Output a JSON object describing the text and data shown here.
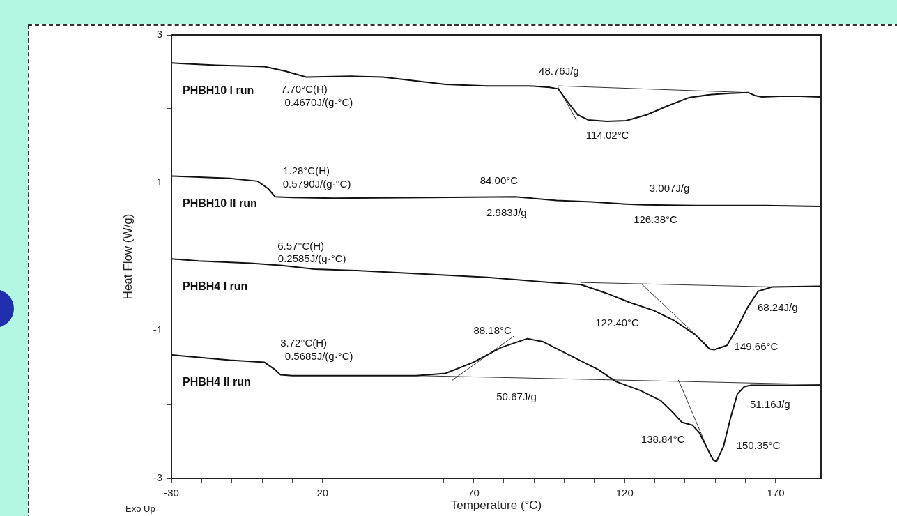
{
  "chart_data": {
    "type": "line",
    "xlabel": "Temperature (°C)",
    "ylabel": "Heat Flow (W/g)",
    "xlim": [
      -30,
      185
    ],
    "ylim": [
      -3,
      3
    ],
    "xticks": [
      -30,
      {
        "value": -20,
        "label": null
      },
      {
        "value": -10,
        "label": null
      },
      {
        "value": 0,
        "label": null
      },
      {
        "value": 10,
        "label": null
      },
      20,
      {
        "value": 30,
        "label": null
      },
      {
        "value": 40,
        "label": null
      },
      {
        "value": 50,
        "label": null
      },
      {
        "value": 60,
        "label": null
      },
      70,
      {
        "value": 80,
        "label": null
      },
      {
        "value": 90,
        "label": null
      },
      {
        "value": 100,
        "label": null
      },
      {
        "value": 110,
        "label": null
      },
      120,
      {
        "value": 130,
        "label": null
      },
      {
        "value": 140,
        "label": null
      },
      {
        "value": 150,
        "label": null
      },
      {
        "value": 160,
        "label": null
      },
      170,
      {
        "value": 180,
        "label": null
      }
    ],
    "yticks": [
      -3,
      {
        "value": -2,
        "label": null
      },
      -1,
      {
        "value": 0,
        "label": null
      },
      1,
      {
        "value": 2,
        "label": null
      },
      3
    ],
    "grid": false,
    "legend": false,
    "marker": "none",
    "line_style": "solid",
    "series": [
      {
        "name": "PHBH10 I run",
        "color": "#111111",
        "x": [
          -30,
          -15.3,
          0.8,
          7.7,
          14.6,
          29.6,
          40.0,
          50.3,
          60.7,
          74.5,
          88.3,
          95.2,
          98.0,
          101.0,
          104.4,
          107.9,
          114.1,
          120.5,
          127.4,
          134.3,
          141.2,
          148.1,
          155.0,
          160.8,
          163.1,
          165.4,
          171.2,
          178.1,
          184.5
        ],
        "values": [
          2.62,
          2.59,
          2.57,
          2.51,
          2.43,
          2.44,
          2.43,
          2.38,
          2.33,
          2.31,
          2.31,
          2.29,
          2.27,
          2.1,
          1.92,
          1.85,
          1.83,
          1.84,
          1.92,
          2.04,
          2.15,
          2.19,
          2.21,
          2.22,
          2.18,
          2.16,
          2.17,
          2.17,
          2.16
        ]
      },
      {
        "color": "#333333",
        "x": [
          98.0,
          160.8
        ],
        "values": [
          2.31,
          2.22
        ]
      },
      {
        "color": "#333333",
        "x": [
          98.0,
          104.0
        ],
        "values": [
          2.29,
          1.85
        ]
      },
      {
        "name": "PHBH10 II run",
        "color": "#111111",
        "x": [
          -30,
          -10.7,
          -1.5,
          2.0,
          4.3,
          10.0,
          23.9,
          55.4,
          83.7,
          97.5,
          109.0,
          120.5,
          126.3,
          143.5,
          166.5,
          184.5
        ],
        "values": [
          1.09,
          1.06,
          1.02,
          0.92,
          0.81,
          0.8,
          0.79,
          0.8,
          0.81,
          0.76,
          0.74,
          0.71,
          0.7,
          0.69,
          0.69,
          0.68
        ]
      },
      {
        "name": "PHBH4 I run",
        "color": "#111111",
        "x": [
          -30,
          -21.0,
          -3.8,
          6.6,
          17.4,
          32.4,
          51.5,
          74.5,
          95.2,
          105.6,
          113.6,
          121.7,
          129.7,
          136.6,
          143.5,
          148.1,
          149.7,
          153.9,
          157.3,
          160.8,
          164.2,
          168.8,
          184.5
        ],
        "values": [
          -0.03,
          -0.06,
          -0.09,
          -0.12,
          -0.17,
          -0.19,
          -0.23,
          -0.28,
          -0.35,
          -0.38,
          -0.49,
          -0.62,
          -0.73,
          -0.87,
          -1.06,
          -1.25,
          -1.26,
          -1.2,
          -0.96,
          -0.68,
          -0.47,
          -0.41,
          -0.4
        ]
      },
      {
        "color": "#333333",
        "x": [
          105.6,
          168.8
        ],
        "values": [
          -0.35,
          -0.41
        ]
      },
      {
        "color": "#333333",
        "x": [
          125.6,
          147.7
        ],
        "values": [
          -0.37,
          -1.22
        ]
      },
      {
        "name": "PHBH4 II run",
        "color": "#111111",
        "x": [
          -30,
          -10.7,
          0.8,
          4.3,
          6.1,
          10.0,
          23.9,
          51.0,
          60.7,
          69.9,
          79.1,
          87.8,
          92.9,
          102.1,
          111.3,
          117.1,
          125.1,
          132.0,
          135.5,
          138.9,
          142.4,
          144.7,
          147.0,
          149.3,
          150.4,
          152.7,
          155.0,
          157.3,
          159.6,
          161.9,
          184.5
        ],
        "values": [
          -1.33,
          -1.4,
          -1.43,
          -1.53,
          -1.6,
          -1.61,
          -1.61,
          -1.61,
          -1.58,
          -1.43,
          -1.23,
          -1.11,
          -1.15,
          -1.34,
          -1.53,
          -1.69,
          -1.81,
          -1.95,
          -2.09,
          -2.24,
          -2.28,
          -2.38,
          -2.57,
          -2.75,
          -2.77,
          -2.57,
          -2.19,
          -1.86,
          -1.76,
          -1.74,
          -1.74
        ]
      },
      {
        "color": "#333333",
        "x": [
          51.0,
          184.5
        ],
        "values": [
          -1.61,
          -1.73
        ]
      },
      {
        "color": "#333333",
        "x": [
          63.0,
          83.2
        ],
        "values": [
          -1.67,
          -1.08
        ]
      },
      {
        "color": "#333333",
        "x": [
          137.8,
          148.6
        ],
        "values": [
          -1.67,
          -2.71
        ]
      }
    ],
    "annotations": [
      {
        "text": "48.76J/g",
        "x": 98.0,
        "y": 2.31
      },
      {
        "text": "7.70°C(H)",
        "x": 7.7,
        "y": 2.51
      },
      {
        "text": "0.4670J/(g·°C)",
        "x": 7.7,
        "y": 2.51
      },
      {
        "text": "114.02°C",
        "x": 114.1,
        "y": 1.83
      },
      {
        "text": "1.28°C(H)",
        "x": -1.5,
        "y": 1.02
      },
      {
        "text": "0.5790J/(g·°C)",
        "x": -1.5,
        "y": 1.02
      },
      {
        "text": "84.00°C",
        "x": 83.7,
        "y": 0.81
      },
      {
        "text": "2.983J/g",
        "x": 83.7,
        "y": 0.81
      },
      {
        "text": "3.007J/g",
        "x": 126.3,
        "y": 0.7
      },
      {
        "text": "126.38°C",
        "x": 126.3,
        "y": 0.7
      },
      {
        "text": "6.57°C(H)",
        "x": 6.6,
        "y": -0.12
      },
      {
        "text": "0.2585J/(g·°C)",
        "x": 6.6,
        "y": -0.12
      },
      {
        "text": "122.40°C",
        "x": 121.7,
        "y": -0.62
      },
      {
        "text": "68.24J/g",
        "x": 168.8,
        "y": -0.41
      },
      {
        "text": "149.66°C",
        "x": 149.7,
        "y": -1.26
      },
      {
        "text": "88.18°C",
        "x": 87.8,
        "y": -1.11
      },
      {
        "text": "3.72°C(H)",
        "x": 4.3,
        "y": -1.53
      },
      {
        "text": "0.5685J/(g·°C)",
        "x": 4.3,
        "y": -1.53
      },
      {
        "text": "50.67J/g",
        "x": 84.2,
        "y": -1.64
      },
      {
        "text": "51.16J/g",
        "x": 161.9,
        "y": -1.74
      },
      {
        "text": "138.84°C",
        "x": 138.9,
        "y": -2.24
      },
      {
        "text": "150.35°C",
        "x": 150.4,
        "y": -2.77
      },
      "Exo Up"
    ]
  }
}
